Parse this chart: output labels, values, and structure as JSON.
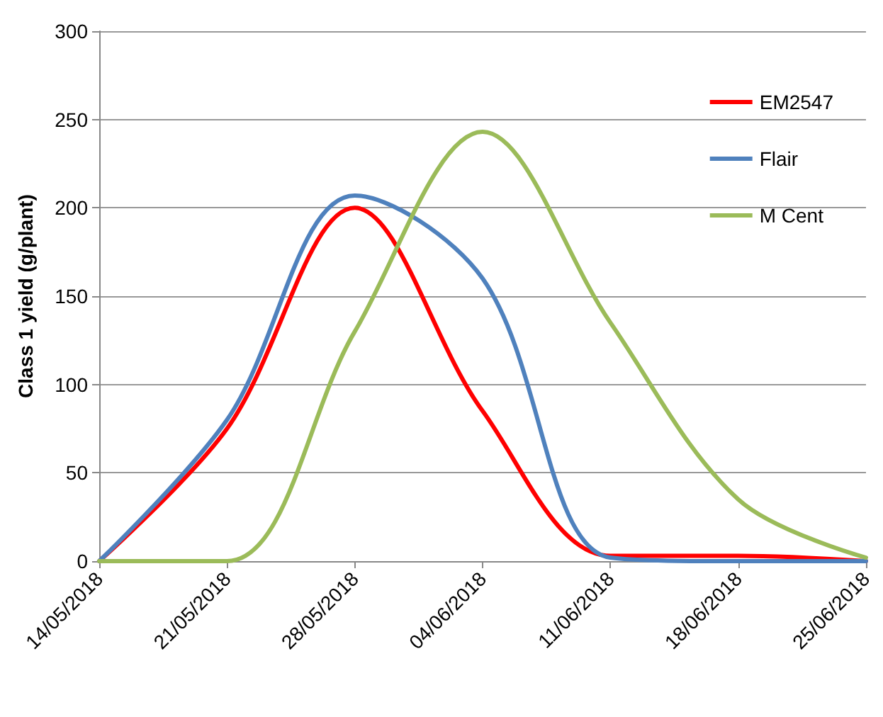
{
  "chart_data": {
    "type": "line",
    "ylabel": "Class 1 yield (g/plant)",
    "x": [
      "2018-05-14",
      "2018-05-21",
      "2018-05-28",
      "2018-06-04",
      "2018-06-11",
      "2018-06-18",
      "2018-06-25"
    ],
    "series": [
      {
        "name": "EM2547",
        "color": "#ff0000",
        "values": [
          0,
          75,
          200,
          85,
          3,
          3,
          0
        ]
      },
      {
        "name": "Flair",
        "color": "#4f81bd",
        "values": [
          0,
          80,
          207,
          160,
          2,
          0,
          0
        ]
      },
      {
        "name": "M Cent",
        "color": "#9bbb59",
        "values": [
          0,
          0,
          130,
          243,
          135,
          35,
          2
        ]
      }
    ],
    "xlim": [
      "2018-05-14",
      "2018-06-25"
    ],
    "xticks": [
      {
        "value": "2018-05-14",
        "label": "14/05/2018"
      },
      {
        "value": "2018-05-21",
        "label": "21/05/2018"
      },
      {
        "value": "2018-05-28",
        "label": "28/05/2018"
      },
      {
        "value": "2018-06-04",
        "label": "04/06/2018"
      },
      {
        "value": "2018-06-11",
        "label": "11/06/2018"
      },
      {
        "value": "2018-06-18",
        "label": "18/06/2018"
      },
      {
        "value": "2018-06-25",
        "label": "25/06/2018"
      }
    ],
    "ylim": [
      0,
      300
    ],
    "yticks": [
      0,
      50,
      100,
      150,
      200,
      250,
      300
    ],
    "grid": "y",
    "legend": "top right",
    "marker": "none",
    "line_style": "solid"
  }
}
